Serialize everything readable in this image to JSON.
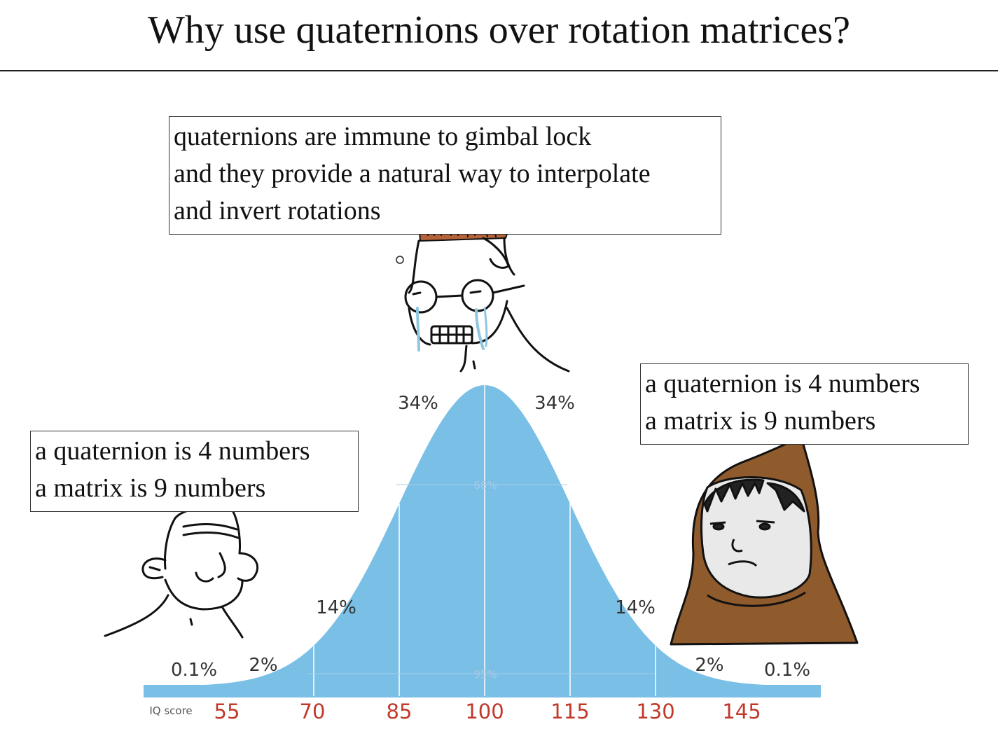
{
  "title": "Why use quaternions over rotation matrices?",
  "bubbles": {
    "top": [
      "quaternions are immune to gimbal lock",
      "and they provide a natural way to interpolate",
      "and invert rotations"
    ],
    "left": [
      "a quaternion is 4 numbers",
      "a matrix is 9 numbers"
    ],
    "right": [
      "a quaternion is 4 numbers",
      "a matrix is 9 numbers"
    ]
  },
  "chart_data": {
    "type": "area",
    "distribution": "normal",
    "mean": 100,
    "sd": 15,
    "x_axis_label": "IQ score",
    "ticks": [
      "55",
      "70",
      "85",
      "100",
      "115",
      "130",
      "145"
    ],
    "region_labels": [
      "0.1%",
      "2%",
      "14%",
      "34%",
      "34%",
      "14%",
      "2%",
      "0.1%"
    ],
    "inner_labels": [
      "68%",
      "95%"
    ],
    "fill_color": "#79bfe6",
    "tick_color": "#c0392b"
  },
  "characters": [
    "nerd-crying",
    "caveman",
    "hooded-monk"
  ]
}
